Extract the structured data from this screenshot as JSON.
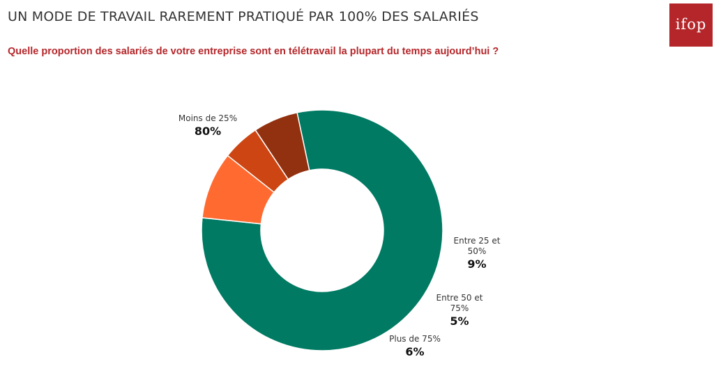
{
  "header": {
    "title": "UN MODE DE TRAVAIL RAREMENT PRATIQUÉ PAR 100% DES SALARIÉS",
    "question": "Quelle proportion des salariés de votre entreprise sont en télétravail la plupart du temps aujourd’hui ?"
  },
  "logo": {
    "text": "ifop",
    "color": "#b5262a"
  },
  "chart_data": {
    "type": "pie",
    "variant": "donut",
    "categories": [
      "Moins de 25%",
      "Entre 25 et 50%",
      "Entre 50 et 75%",
      "Plus de 75%"
    ],
    "label_lines": [
      [
        "Moins de 25%"
      ],
      [
        "Entre 25 et",
        "50%"
      ],
      [
        "Entre 50 et",
        "75%"
      ],
      [
        "Plus de 75%"
      ]
    ],
    "values": [
      80,
      9,
      5,
      6
    ],
    "value_labels": [
      "80%",
      "9%",
      "5%",
      "6%"
    ],
    "colors": [
      "#007a63",
      "#ff6a30",
      "#cc4512",
      "#92310f"
    ]
  }
}
